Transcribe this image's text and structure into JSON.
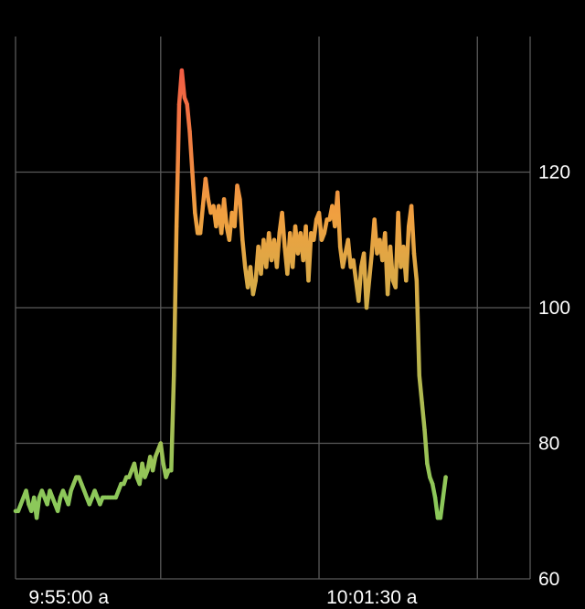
{
  "chart_data": {
    "type": "line",
    "title": "",
    "xlabel": "",
    "ylabel": "",
    "ylim": [
      60,
      140
    ],
    "yticks": [
      {
        "value": 120,
        "label": "120"
      },
      {
        "value": 100,
        "label": "100"
      },
      {
        "value": 80,
        "label": "80"
      },
      {
        "value": 60,
        "label": "60"
      }
    ],
    "xlim": [
      "9:54:45",
      "10:04:30"
    ],
    "xticks": [
      {
        "time": "9:55:00",
        "label": "9:55:00 a"
      },
      {
        "time": "10:01:30",
        "label": "10:01:30 a"
      }
    ],
    "vertical_gridlines": [
      "9:54:45",
      "9:57:30",
      "10:00:30",
      "10:03:30",
      "10:06:30"
    ],
    "grid": true,
    "y_axis_side": "right",
    "line_gradient": {
      "low_value": 72,
      "high_value": 136,
      "low_color": "#8cc85a",
      "mid_color": "#f0a040",
      "high_color": "#f25a44"
    },
    "series": [
      {
        "values": [
          [
            "9:54:45",
            70
          ],
          [
            "9:54:48",
            70
          ],
          [
            "9:54:51",
            71
          ],
          [
            "9:54:54",
            72
          ],
          [
            "9:54:57",
            73
          ],
          [
            "9:55:00",
            71
          ],
          [
            "9:55:03",
            70
          ],
          [
            "9:55:06",
            72
          ],
          [
            "9:55:09",
            69
          ],
          [
            "9:55:12",
            72
          ],
          [
            "9:55:15",
            73
          ],
          [
            "9:55:18",
            72
          ],
          [
            "9:55:21",
            71
          ],
          [
            "9:55:24",
            73
          ],
          [
            "9:55:27",
            72
          ],
          [
            "9:55:30",
            71
          ],
          [
            "9:55:33",
            70
          ],
          [
            "9:55:36",
            72
          ],
          [
            "9:55:39",
            73
          ],
          [
            "9:55:42",
            72
          ],
          [
            "9:55:45",
            71
          ],
          [
            "9:55:48",
            73
          ],
          [
            "9:55:51",
            74
          ],
          [
            "9:55:54",
            75
          ],
          [
            "9:55:57",
            75
          ],
          [
            "9:56:00",
            74
          ],
          [
            "9:56:03",
            73
          ],
          [
            "9:56:06",
            72
          ],
          [
            "9:56:09",
            71
          ],
          [
            "9:56:12",
            72
          ],
          [
            "9:56:15",
            73
          ],
          [
            "9:56:18",
            72
          ],
          [
            "9:56:21",
            71
          ],
          [
            "9:56:24",
            72
          ],
          [
            "9:56:27",
            72
          ],
          [
            "9:56:30",
            72
          ],
          [
            "9:56:33",
            72
          ],
          [
            "9:56:36",
            72
          ],
          [
            "9:56:39",
            72
          ],
          [
            "9:56:42",
            73
          ],
          [
            "9:56:45",
            74
          ],
          [
            "9:56:48",
            74
          ],
          [
            "9:56:51",
            75
          ],
          [
            "9:56:54",
            75
          ],
          [
            "9:56:57",
            76
          ],
          [
            "9:57:00",
            77
          ],
          [
            "9:57:03",
            75
          ],
          [
            "9:57:06",
            74
          ],
          [
            "9:57:09",
            77
          ],
          [
            "9:57:12",
            75
          ],
          [
            "9:57:15",
            76
          ],
          [
            "9:57:18",
            78
          ],
          [
            "9:57:21",
            76
          ],
          [
            "9:57:24",
            78
          ],
          [
            "9:57:27",
            79
          ],
          [
            "9:57:30",
            80
          ],
          [
            "9:57:33",
            77
          ],
          [
            "9:57:36",
            75
          ],
          [
            "9:57:39",
            76
          ],
          [
            "9:57:42",
            76
          ],
          [
            "9:57:45",
            90
          ],
          [
            "9:57:48",
            112
          ],
          [
            "9:57:51",
            130
          ],
          [
            "9:57:54",
            135
          ],
          [
            "9:57:57",
            131
          ],
          [
            "9:58:00",
            130
          ],
          [
            "9:58:03",
            126
          ],
          [
            "9:58:06",
            120
          ],
          [
            "9:58:09",
            114
          ],
          [
            "9:58:12",
            111
          ],
          [
            "9:58:15",
            111
          ],
          [
            "9:58:18",
            115
          ],
          [
            "9:58:21",
            119
          ],
          [
            "9:58:24",
            116
          ],
          [
            "9:58:27",
            114
          ],
          [
            "9:58:30",
            115
          ],
          [
            "9:58:33",
            112
          ],
          [
            "9:58:36",
            115
          ],
          [
            "9:58:39",
            111
          ],
          [
            "9:58:42",
            116
          ],
          [
            "9:58:45",
            112
          ],
          [
            "9:58:48",
            110
          ],
          [
            "9:58:51",
            114
          ],
          [
            "9:58:54",
            112
          ],
          [
            "9:58:57",
            118
          ],
          [
            "9:59:00",
            116
          ],
          [
            "9:59:03",
            110
          ],
          [
            "9:59:06",
            106
          ],
          [
            "9:59:09",
            103
          ],
          [
            "9:59:12",
            106
          ],
          [
            "9:59:15",
            102
          ],
          [
            "9:59:18",
            104
          ],
          [
            "9:59:21",
            109
          ],
          [
            "9:59:24",
            105
          ],
          [
            "9:59:27",
            110
          ],
          [
            "9:59:30",
            106
          ],
          [
            "9:59:33",
            111
          ],
          [
            "9:59:36",
            107
          ],
          [
            "9:59:39",
            110
          ],
          [
            "9:59:42",
            106
          ],
          [
            "9:59:45",
            111
          ],
          [
            "9:59:48",
            114
          ],
          [
            "9:59:51",
            109
          ],
          [
            "9:59:54",
            105
          ],
          [
            "9:59:57",
            111
          ],
          [
            "10:00:00",
            106
          ],
          [
            "10:00:03",
            112
          ],
          [
            "10:00:06",
            108
          ],
          [
            "10:00:09",
            111
          ],
          [
            "10:00:12",
            107
          ],
          [
            "10:00:15",
            112
          ],
          [
            "10:00:18",
            104
          ],
          [
            "10:00:21",
            111
          ],
          [
            "10:00:24",
            110
          ],
          [
            "10:00:27",
            113
          ],
          [
            "10:00:30",
            114
          ],
          [
            "10:00:33",
            110
          ],
          [
            "10:00:36",
            111
          ],
          [
            "10:00:39",
            113
          ],
          [
            "10:00:42",
            113
          ],
          [
            "10:00:45",
            115
          ],
          [
            "10:00:48",
            112
          ],
          [
            "10:00:51",
            117
          ],
          [
            "10:00:54",
            109
          ],
          [
            "10:00:57",
            106
          ],
          [
            "10:01:00",
            108
          ],
          [
            "10:01:03",
            110
          ],
          [
            "10:01:06",
            106
          ],
          [
            "10:01:09",
            107
          ],
          [
            "10:01:12",
            104
          ],
          [
            "10:01:15",
            101
          ],
          [
            "10:01:18",
            106
          ],
          [
            "10:01:21",
            108
          ],
          [
            "10:01:24",
            100
          ],
          [
            "10:01:27",
            104
          ],
          [
            "10:01:30",
            108
          ],
          [
            "10:01:33",
            113
          ],
          [
            "10:01:36",
            108
          ],
          [
            "10:01:39",
            110
          ],
          [
            "10:01:42",
            107
          ],
          [
            "10:01:45",
            111
          ],
          [
            "10:01:48",
            102
          ],
          [
            "10:01:51",
            109
          ],
          [
            "10:01:54",
            104
          ],
          [
            "10:01:57",
            103
          ],
          [
            "10:02:00",
            114
          ],
          [
            "10:02:03",
            106
          ],
          [
            "10:02:06",
            109
          ],
          [
            "10:02:09",
            104
          ],
          [
            "10:02:12",
            112
          ],
          [
            "10:02:15",
            115
          ],
          [
            "10:02:18",
            108
          ],
          [
            "10:02:21",
            104
          ],
          [
            "10:02:24",
            90
          ],
          [
            "10:02:27",
            86
          ],
          [
            "10:02:30",
            82
          ],
          [
            "10:02:33",
            77
          ],
          [
            "10:02:36",
            75
          ],
          [
            "10:02:39",
            74
          ],
          [
            "10:02:42",
            72
          ],
          [
            "10:02:45",
            69
          ],
          [
            "10:02:48",
            69
          ],
          [
            "10:02:51",
            72
          ],
          [
            "10:02:54",
            75
          ]
        ]
      }
    ]
  }
}
